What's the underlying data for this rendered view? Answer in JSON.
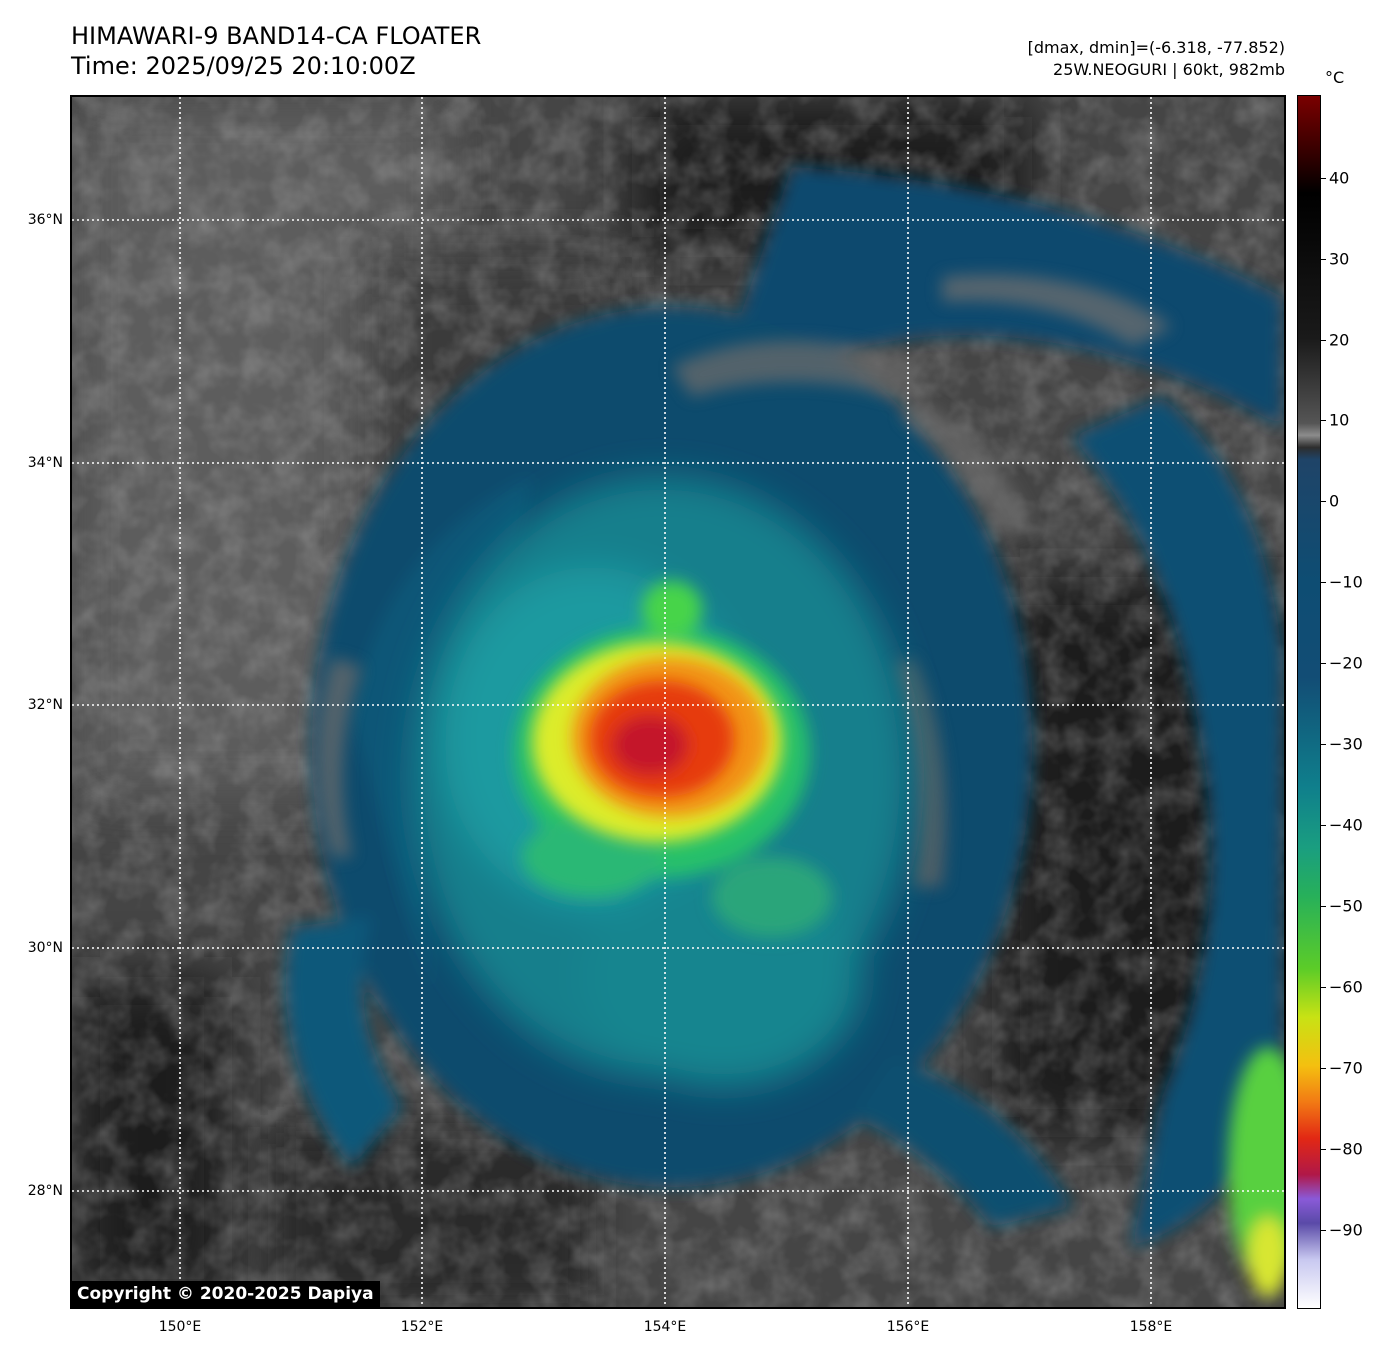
{
  "header": {
    "title": "HIMAWARI-9 BAND14-CA FLOATER",
    "time": "Time: 2025/09/25 20:10:00Z",
    "dminmax": "[dmax, dmin]=(-6.318, -77.852)",
    "storm": "25W.NEOGURI | 60kt, 982mb"
  },
  "map": {
    "lat_labels": [
      "36°N",
      "34°N",
      "32°N",
      "30°N",
      "28°N"
    ],
    "lon_labels": [
      "150°E",
      "152°E",
      "154°E",
      "156°E",
      "158°E"
    ],
    "copyright": "Copyright © 2020-2025 Dapiya"
  },
  "colorbar": {
    "unit": "°C",
    "ticks": [
      "40",
      "30",
      "20",
      "10",
      "0",
      "−10",
      "−20",
      "−30",
      "−40",
      "−50",
      "−60",
      "−70",
      "−80",
      "−90"
    ]
  }
}
